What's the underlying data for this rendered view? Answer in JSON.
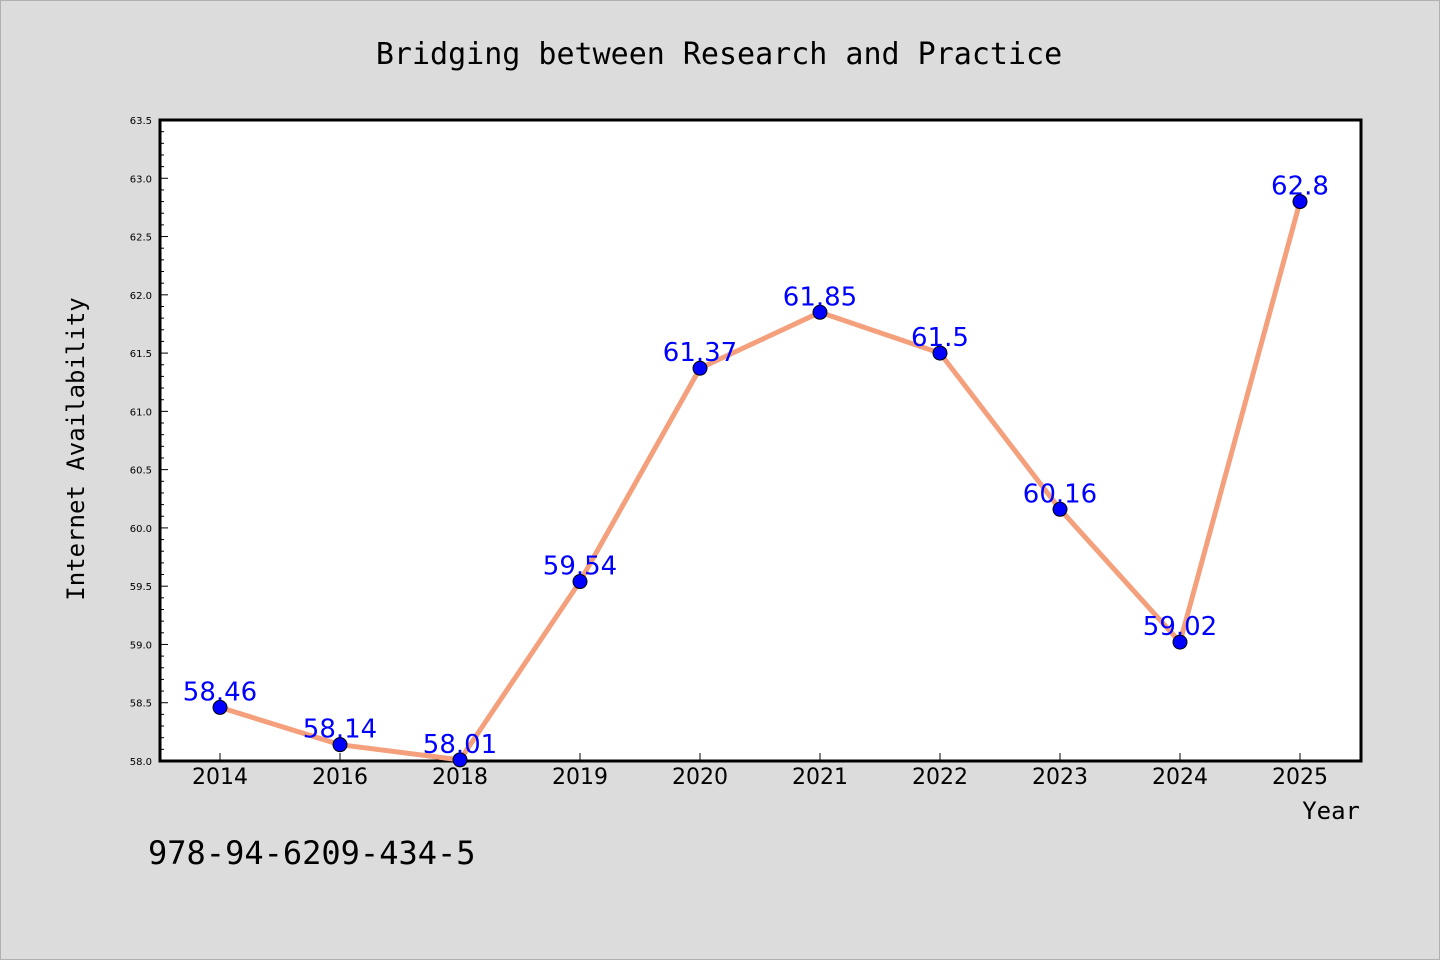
{
  "chart_data": {
    "type": "line",
    "title": "Bridging between Research and Practice",
    "xlabel": "Year",
    "ylabel": "Internet Availability",
    "categories": [
      "2014",
      "2016",
      "2018",
      "2019",
      "2020",
      "2021",
      "2022",
      "2023",
      "2024",
      "2025"
    ],
    "values": [
      58.46,
      58.14,
      58.01,
      59.54,
      61.37,
      61.85,
      61.5,
      60.16,
      59.02,
      62.8
    ],
    "data_labels": [
      "58.46",
      "58.14",
      "58.01",
      "59.54",
      "61.37",
      "61.85",
      "61.5",
      "60.16",
      "59.02",
      "62.8"
    ],
    "ylim": [
      58.0,
      63.5
    ],
    "yticks": [
      "58.0",
      "58.5",
      "59.0",
      "59.5",
      "60.0",
      "60.5",
      "61.0",
      "61.5",
      "62.0",
      "62.5",
      "63.0",
      "63.5"
    ],
    "grid": false,
    "line_color": "#f4a07c",
    "marker_color": "#0000ff",
    "label_color": "#0000ff",
    "background_color": "#dcdcdc",
    "plot_background": "#ffffff"
  },
  "footer": {
    "isbn": "978-94-6209-434-5"
  }
}
